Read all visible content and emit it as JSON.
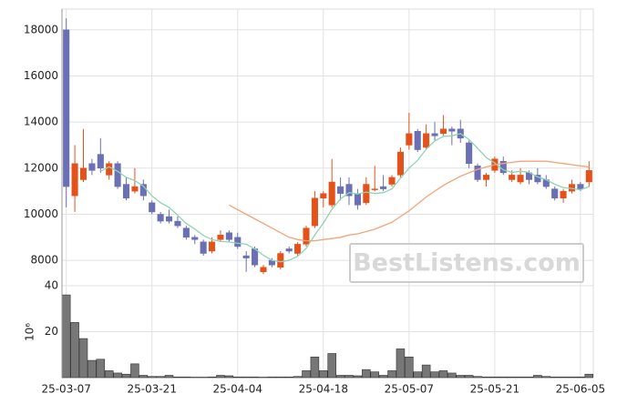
{
  "chart_data": [
    {
      "type": "candlestick",
      "watermark": "BestListens.com",
      "up_color": "#e4521b",
      "down_color": "#6b6fb3",
      "open": [
        18000,
        10800,
        11500,
        12200,
        12600,
        11700,
        12200,
        11300,
        11000,
        11300,
        10500,
        10000,
        9900,
        9700,
        9400,
        9000,
        8800,
        8400,
        8900,
        9200,
        9000,
        8200,
        8500,
        7500,
        8000,
        7700,
        8500,
        8300,
        8700,
        9500,
        10700,
        10400,
        11200,
        11300,
        10900,
        10500,
        11100,
        11200,
        11300,
        11700,
        13000,
        13600,
        12900,
        13500,
        13500,
        13700,
        13700,
        13100,
        12100,
        11500,
        11900,
        12300,
        11500,
        11400,
        11800,
        11700,
        11500,
        11100,
        10700,
        11000,
        11300,
        11400
      ],
      "high": [
        18500,
        13000,
        13700,
        12400,
        13300,
        12300,
        12300,
        11600,
        12000,
        11500,
        10600,
        10100,
        10200,
        9900,
        9500,
        9100,
        8900,
        9000,
        9300,
        9300,
        9200,
        8400,
        8600,
        7800,
        8100,
        8400,
        8600,
        8800,
        9500,
        11000,
        11000,
        12400,
        11600,
        11600,
        11100,
        11600,
        12100,
        11700,
        11700,
        12900,
        14400,
        13700,
        13900,
        14000,
        14300,
        13800,
        14100,
        13200,
        12200,
        11800,
        12500,
        12500,
        11900,
        12000,
        11900,
        12000,
        11700,
        11200,
        11100,
        11500,
        11400,
        12300
      ],
      "low": [
        10300,
        10100,
        11400,
        11700,
        11800,
        11500,
        11100,
        10600,
        10900,
        10600,
        10000,
        9600,
        9600,
        9400,
        8900,
        8700,
        8200,
        8300,
        8800,
        8800,
        8500,
        7500,
        7700,
        7400,
        7700,
        7600,
        8300,
        8200,
        8600,
        9400,
        10300,
        10300,
        10600,
        10400,
        10200,
        10400,
        11000,
        11000,
        11200,
        11600,
        12800,
        12700,
        12800,
        13200,
        13400,
        13000,
        13100,
        12000,
        11400,
        11200,
        11800,
        11700,
        11400,
        11300,
        11300,
        11300,
        11100,
        10600,
        10500,
        10900,
        11000,
        11200
      ],
      "close": [
        11200,
        12200,
        12000,
        11900,
        12000,
        12200,
        11200,
        10700,
        11200,
        10800,
        10100,
        9700,
        9700,
        9500,
        9000,
        8900,
        8300,
        8800,
        9100,
        8900,
        8600,
        8100,
        7800,
        7700,
        7800,
        8300,
        8400,
        8700,
        9400,
        10700,
        10900,
        11400,
        10900,
        10800,
        10400,
        11300,
        11100,
        11100,
        11600,
        12700,
        13500,
        12800,
        13500,
        13400,
        13700,
        13600,
        13300,
        12200,
        11500,
        11700,
        12400,
        11800,
        11700,
        11700,
        11500,
        11400,
        11200,
        10700,
        11000,
        11300,
        11100,
        11900
      ],
      "moving_averages": [
        {
          "color": "#8fd4b4",
          "values": [
            null,
            null,
            null,
            null,
            11860,
            12060,
            11860,
            11600,
            11460,
            11220,
            10800,
            10500,
            10300,
            9960,
            9600,
            9360,
            9080,
            8900,
            8820,
            8800,
            8740,
            8700,
            8500,
            8220,
            8000,
            7940,
            8000,
            8180,
            8520,
            9100,
            9620,
            10220,
            10660,
            10940,
            10880,
            10960,
            10900,
            10940,
            11100,
            11560,
            12000,
            12340,
            12820,
            13180,
            13380,
            13400,
            13500,
            13240,
            12860,
            12460,
            12220,
            11920,
            11820,
            11860,
            11820,
            11620,
            11500,
            11300,
            11160,
            11120,
            11060,
            11200
          ]
        },
        {
          "color": "#f0a47a",
          "values": [
            null,
            null,
            null,
            null,
            null,
            null,
            null,
            null,
            null,
            null,
            null,
            null,
            null,
            null,
            null,
            null,
            null,
            null,
            null,
            10400,
            10200,
            10000,
            9800,
            9600,
            9400,
            9200,
            9000,
            8900,
            8850,
            8850,
            8900,
            8950,
            9000,
            9100,
            9150,
            9250,
            9350,
            9500,
            9650,
            9900,
            10150,
            10450,
            10750,
            11000,
            11250,
            11450,
            11650,
            11800,
            11950,
            12050,
            12150,
            12200,
            12250,
            12300,
            12300,
            12300,
            12300,
            12250,
            12200,
            12150,
            12100,
            12050
          ]
        }
      ],
      "ylim": [
        6900,
        18900
      ],
      "yticks": [
        8000,
        10000,
        12000,
        14000,
        16000,
        18000
      ],
      "grid": true
    },
    {
      "type": "bar",
      "color": "#777777",
      "y_label": "10⁶",
      "categories": [
        "25-03-07",
        null,
        null,
        null,
        null,
        null,
        null,
        null,
        null,
        null,
        "25-03-21",
        null,
        null,
        null,
        null,
        null,
        null,
        null,
        null,
        null,
        "25-04-04",
        null,
        null,
        null,
        null,
        null,
        null,
        null,
        null,
        null,
        "25-04-18",
        null,
        null,
        null,
        null,
        null,
        null,
        null,
        null,
        null,
        "25-05-07",
        null,
        null,
        null,
        null,
        null,
        null,
        null,
        null,
        null,
        "25-05-21",
        null,
        null,
        null,
        null,
        null,
        null,
        null,
        null,
        null,
        "25-06-05",
        null
      ],
      "values": [
        36,
        24,
        17,
        7.5,
        8,
        3,
        2,
        1.5,
        6,
        1,
        0.5,
        0.5,
        1,
        0.3,
        0.3,
        0.2,
        0.2,
        0.3,
        1,
        0.8,
        0.3,
        0.3,
        0.3,
        0.2,
        0.3,
        0.3,
        0.3,
        0.5,
        3,
        9,
        3,
        10.5,
        1,
        1,
        0.8,
        3.5,
        2.5,
        1,
        3,
        12.5,
        9,
        2.5,
        5.5,
        2.5,
        3,
        2,
        1,
        1,
        0.5,
        0.3,
        0.3,
        0.3,
        0.3,
        0.3,
        0.3,
        1,
        0.5,
        0.3,
        0.3,
        0.3,
        0.3,
        1.5
      ],
      "ylim": [
        0,
        40
      ],
      "yticks": [
        20,
        40
      ],
      "grid": true
    }
  ]
}
